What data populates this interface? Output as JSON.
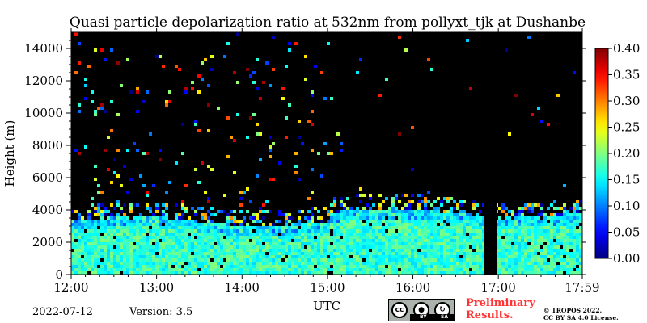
{
  "chart_data": {
    "type": "heatmap",
    "title": "Quasi particle depolarization ratio at 532nm from pollyxt_tjk at Dushanbe",
    "xlabel": "UTC",
    "ylabel": "Height (m)",
    "x_ticks": [
      "12:00",
      "13:00",
      "14:00",
      "15:00",
      "16:00",
      "17:00",
      "17:59"
    ],
    "x_tick_hours": [
      12,
      13,
      14,
      15,
      16,
      17,
      17.983
    ],
    "xlim_hours": [
      12,
      17.983
    ],
    "y_ticks": [
      0,
      2000,
      4000,
      6000,
      8000,
      10000,
      12000,
      14000
    ],
    "ylim": [
      0,
      15000
    ],
    "colorbar": {
      "min": 0.0,
      "max": 0.4,
      "ticks": [
        "0.00",
        "0.05",
        "0.10",
        "0.15",
        "0.20",
        "0.25",
        "0.30",
        "0.35",
        "0.40"
      ],
      "colormap": "jet"
    },
    "background_color": "#000000",
    "regions": [
      {
        "description": "aerosol layer",
        "time_start": 12.0,
        "time_end": 17.983,
        "height_min": 0,
        "height_max": 4000,
        "typical_value": 0.17
      },
      {
        "description": "no data gap",
        "time_start": 16.83,
        "time_end": 16.98,
        "height_min": 0,
        "height_max": 15000,
        "typical_value": null
      }
    ]
  },
  "footer": {
    "date": "2022-07-12",
    "version": "Version: 3.5",
    "preliminary": "Preliminary Results.",
    "copyright_line1": "© TROPOS 2022.",
    "copyright_line2": "CC BY SA 4.0 License.",
    "cc_icon_labels": [
      "cc",
      "BY",
      "SA"
    ]
  }
}
